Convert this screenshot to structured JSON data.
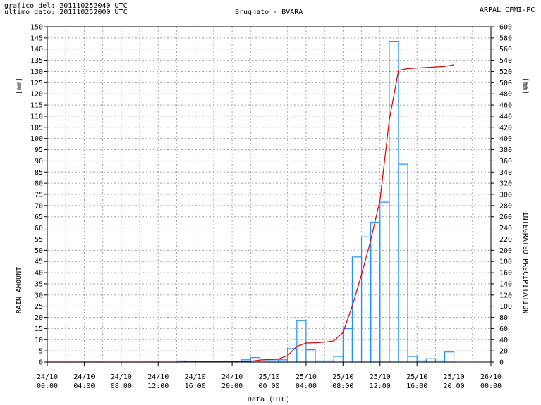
{
  "header": {
    "line1": "grafico del: 201110252040 UTC",
    "line2": "ultimo dato: 201110252000 UTC",
    "title": "Brugnato - BVARA",
    "source": "ARPAL CFMI-PC"
  },
  "chart_data": {
    "type": "bar",
    "title": "Brugnato - BVARA",
    "xlabel": "Data (UTC)",
    "ylabel_left": "RAIN AMOUNT",
    "ylabel_right": "INTEGRATED PRECIPITATION",
    "unit_left": "[mm]",
    "unit_right": "[mm]",
    "ylim_left": [
      0,
      150
    ],
    "ylim_right": [
      0,
      600
    ],
    "grid": true,
    "x_ticks": [
      {
        "date": "24/10",
        "time": "00:00"
      },
      {
        "date": "24/10",
        "time": "04:00"
      },
      {
        "date": "24/10",
        "time": "08:00"
      },
      {
        "date": "24/10",
        "time": "12:00"
      },
      {
        "date": "24/10",
        "time": "16:00"
      },
      {
        "date": "24/10",
        "time": "20:00"
      },
      {
        "date": "25/10",
        "time": "00:00"
      },
      {
        "date": "25/10",
        "time": "04:00"
      },
      {
        "date": "25/10",
        "time": "08:00"
      },
      {
        "date": "25/10",
        "time": "12:00"
      },
      {
        "date": "25/10",
        "time": "16:00"
      },
      {
        "date": "25/10",
        "time": "20:00"
      },
      {
        "date": "26/10",
        "time": "00:00"
      }
    ],
    "hourly_rain": [
      {
        "start": "2011-10-24 14:00",
        "value": 0.5
      },
      {
        "start": "2011-10-24 21:00",
        "value": 1.0
      },
      {
        "start": "2011-10-24 22:00",
        "value": 2.0
      },
      {
        "start": "2011-10-24 23:00",
        "value": 1.0
      },
      {
        "start": "2011-10-25 00:00",
        "value": 1.0
      },
      {
        "start": "2011-10-25 01:00",
        "value": 1.0
      },
      {
        "start": "2011-10-25 02:00",
        "value": 6.0
      },
      {
        "start": "2011-10-25 03:00",
        "value": 18.5
      },
      {
        "start": "2011-10-25 04:00",
        "value": 5.5
      },
      {
        "start": "2011-10-25 05:00",
        "value": 0.5
      },
      {
        "start": "2011-10-25 06:00",
        "value": 0.5
      },
      {
        "start": "2011-10-25 07:00",
        "value": 2.5
      },
      {
        "start": "2011-10-25 08:00",
        "value": 15.0
      },
      {
        "start": "2011-10-25 09:00",
        "value": 47.0
      },
      {
        "start": "2011-10-25 10:00",
        "value": 56.0
      },
      {
        "start": "2011-10-25 11:00",
        "value": 62.5
      },
      {
        "start": "2011-10-25 12:00",
        "value": 71.5
      },
      {
        "start": "2011-10-25 13:00",
        "value": 143.5
      },
      {
        "start": "2011-10-25 14:00",
        "value": 88.5
      },
      {
        "start": "2011-10-25 15:00",
        "value": 2.5
      },
      {
        "start": "2011-10-25 16:00",
        "value": 0.5
      },
      {
        "start": "2011-10-25 17:00",
        "value": 1.5
      },
      {
        "start": "2011-10-25 18:00",
        "value": 0.5
      },
      {
        "start": "2011-10-25 19:00",
        "value": 4.5
      }
    ],
    "integrated": [
      {
        "time": "2011-10-24 00:00",
        "value": 0
      },
      {
        "time": "2011-10-24 14:00",
        "value": 0
      },
      {
        "time": "2011-10-24 15:00",
        "value": 0.5
      },
      {
        "time": "2011-10-24 21:00",
        "value": 0.5
      },
      {
        "time": "2011-10-24 22:00",
        "value": 1.5
      },
      {
        "time": "2011-10-24 23:00",
        "value": 3.5
      },
      {
        "time": "2011-10-25 00:00",
        "value": 4.5
      },
      {
        "time": "2011-10-25 01:00",
        "value": 5.5
      },
      {
        "time": "2011-10-25 02:00",
        "value": 11.5
      },
      {
        "time": "2011-10-25 03:00",
        "value": 28
      },
      {
        "time": "2011-10-25 04:00",
        "value": 34
      },
      {
        "time": "2011-10-25 05:00",
        "value": 34.5
      },
      {
        "time": "2011-10-25 06:00",
        "value": 35.5
      },
      {
        "time": "2011-10-25 07:00",
        "value": 38
      },
      {
        "time": "2011-10-25 08:00",
        "value": 53
      },
      {
        "time": "2011-10-25 09:00",
        "value": 100
      },
      {
        "time": "2011-10-25 10:00",
        "value": 156
      },
      {
        "time": "2011-10-25 11:00",
        "value": 218
      },
      {
        "time": "2011-10-25 12:00",
        "value": 290
      },
      {
        "time": "2011-10-25 13:00",
        "value": 433
      },
      {
        "time": "2011-10-25 14:00",
        "value": 522
      },
      {
        "time": "2011-10-25 15:00",
        "value": 525
      },
      {
        "time": "2011-10-25 16:00",
        "value": 526
      },
      {
        "time": "2011-10-25 17:00",
        "value": 527
      },
      {
        "time": "2011-10-25 18:00",
        "value": 528
      },
      {
        "time": "2011-10-25 19:00",
        "value": 529
      },
      {
        "time": "2011-10-25 20:00",
        "value": 532
      }
    ],
    "colors": {
      "bars": "#1e90ff",
      "integrated_line": "#e00000",
      "grid": "#a0a0a0",
      "text": "#000000"
    }
  }
}
